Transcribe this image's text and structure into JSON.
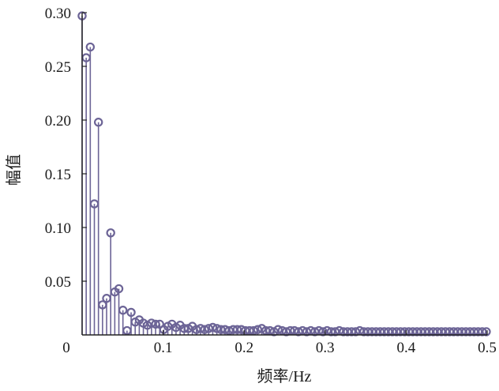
{
  "chart_data": {
    "type": "stem",
    "title": "",
    "xlabel": "频率/Hz",
    "ylabel": "幅值",
    "xlim": [
      0,
      0.5
    ],
    "ylim": [
      0,
      0.3
    ],
    "x_ticks": [
      "0",
      "0.1",
      "0.2",
      "0.3",
      "0.4",
      "0.5"
    ],
    "y_ticks": [
      "0.05",
      "0.10",
      "0.15",
      "0.20",
      "0.25",
      "0.30"
    ],
    "grid": false,
    "legend": "none",
    "color": "#6c6496",
    "x": [
      0.0,
      0.00504,
      0.01008,
      0.01512,
      0.02016,
      0.0252,
      0.03024,
      0.03528,
      0.04032,
      0.04536,
      0.0504,
      0.05544,
      0.06048,
      0.06552,
      0.07056,
      0.0756,
      0.08064,
      0.08568,
      0.09072,
      0.09576,
      0.1008,
      0.10584,
      0.11088,
      0.11592,
      0.12096,
      0.126,
      0.13104,
      0.13608,
      0.14112,
      0.14616,
      0.1512,
      0.15624,
      0.16128,
      0.16632,
      0.17136,
      0.1764,
      0.18144,
      0.18648,
      0.19152,
      0.19656,
      0.2016,
      0.20664,
      0.21168,
      0.21672,
      0.22176,
      0.2268,
      0.23184,
      0.23688,
      0.24192,
      0.24696,
      0.252,
      0.25704,
      0.26208,
      0.26712,
      0.27216,
      0.2772,
      0.28224,
      0.28728,
      0.29232,
      0.29736,
      0.3024,
      0.30744,
      0.31248,
      0.31752,
      0.32256,
      0.3276,
      0.33264,
      0.33768,
      0.34272,
      0.34776,
      0.3528,
      0.35784,
      0.36288,
      0.36792,
      0.37296,
      0.378,
      0.38304,
      0.38808,
      0.39312,
      0.39816,
      0.4032,
      0.40824,
      0.41328,
      0.41832,
      0.42336,
      0.4284,
      0.43344,
      0.43848,
      0.44352,
      0.44856,
      0.4536,
      0.45864,
      0.46368,
      0.46872,
      0.47376,
      0.4788,
      0.48384,
      0.48888,
      0.49392,
      0.49896
    ],
    "y": [
      0.297,
      0.258,
      0.268,
      0.122,
      0.198,
      0.028,
      0.034,
      0.095,
      0.04,
      0.043,
      0.023,
      0.004,
      0.021,
      0.012,
      0.014,
      0.011,
      0.009,
      0.011,
      0.01,
      0.01,
      0.005,
      0.008,
      0.01,
      0.007,
      0.009,
      0.006,
      0.006,
      0.008,
      0.005,
      0.006,
      0.005,
      0.006,
      0.007,
      0.006,
      0.005,
      0.005,
      0.004,
      0.005,
      0.005,
      0.005,
      0.004,
      0.004,
      0.004,
      0.005,
      0.006,
      0.004,
      0.004,
      0.003,
      0.005,
      0.004,
      0.003,
      0.004,
      0.004,
      0.003,
      0.004,
      0.003,
      0.004,
      0.003,
      0.004,
      0.003,
      0.004,
      0.003,
      0.003,
      0.004,
      0.003,
      0.003,
      0.003,
      0.003,
      0.004,
      0.003,
      0.003,
      0.003,
      0.003,
      0.003,
      0.003,
      0.003,
      0.003,
      0.003,
      0.003,
      0.003,
      0.003,
      0.003,
      0.003,
      0.003,
      0.003,
      0.003,
      0.003,
      0.003,
      0.003,
      0.003,
      0.003,
      0.003,
      0.003,
      0.003,
      0.003,
      0.003,
      0.003,
      0.003,
      0.003,
      0.003
    ]
  }
}
